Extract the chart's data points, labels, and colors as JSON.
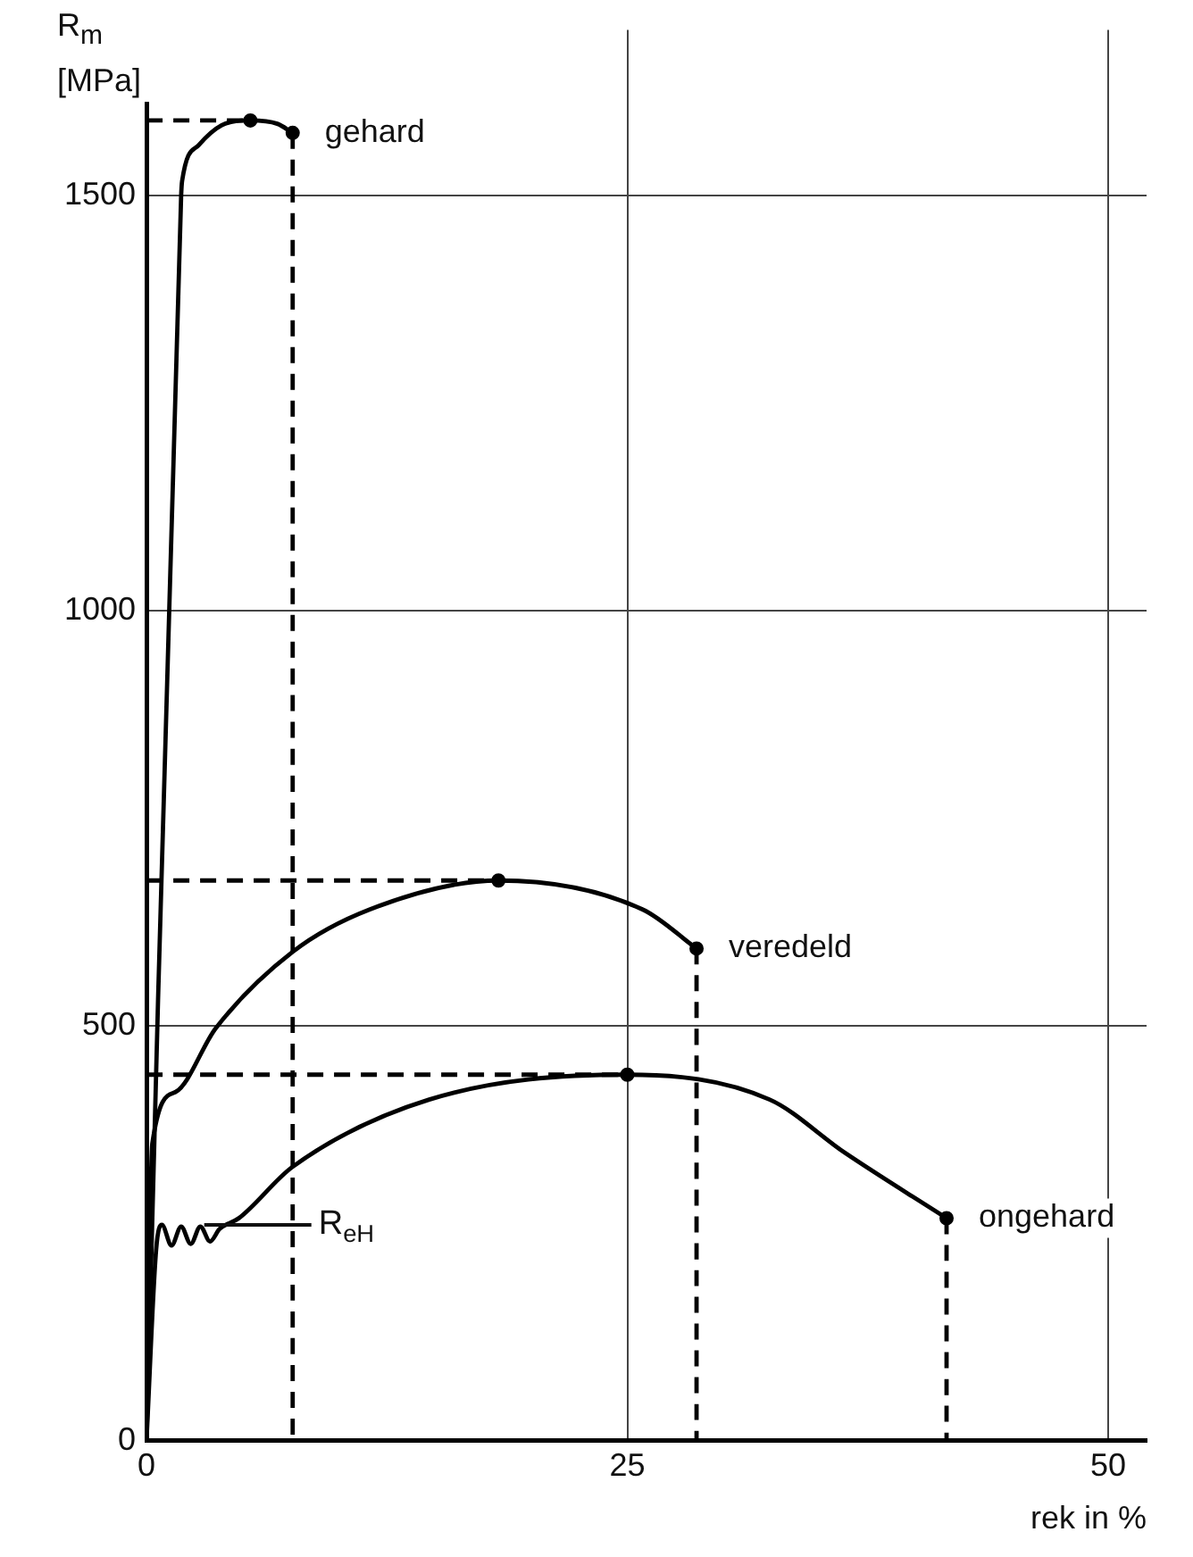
{
  "chart_data": {
    "type": "line",
    "ylabel": "R$_{m}$ [MPa]",
    "xlabel": "rek in %",
    "xlim": [
      0,
      52
    ],
    "ylim": [
      0,
      1700
    ],
    "xticks": [
      0,
      25,
      50
    ],
    "yticks": [
      0,
      500,
      1000,
      1500
    ],
    "grid": true,
    "legend": false,
    "series": [
      {
        "color": "#000000",
        "line_style": "solid",
        "marker": "none",
        "x": [
          0,
          1.8,
          1.85,
          2.7,
          3.9,
          5.4,
          6.8,
          7.6
        ],
        "values": [
          0,
          1500,
          1518,
          1561,
          1585,
          1591,
          1587,
          1576
        ]
      },
      {
        "color": "#000000",
        "line_style": "solid",
        "marker": "none",
        "x": [
          0,
          0.3,
          1.5,
          3.6,
          7.6,
          11.6,
          18.3,
          25.8,
          28.6
        ],
        "values": [
          0,
          358,
          420,
          497,
          589,
          640,
          675,
          640,
          593
        ]
      },
      {
        "color": "#000000",
        "line_style": "solid",
        "marker": "none",
        "x": [
          0,
          0.5,
          0.8,
          1.3,
          1.8,
          2.3,
          2.8,
          3.3,
          3.8,
          4.8,
          7.6,
          14.7,
          25,
          32.4,
          36.3,
          41.6
        ],
        "values": [
          0,
          230,
          260,
          235,
          258,
          237,
          258,
          240,
          255,
          268,
          330,
          411,
          441,
          411,
          347,
          268
        ]
      },
      {
        "color": "#000000",
        "line_style": "dashed",
        "marker": "none",
        "x": [
          0,
          5.4
        ],
        "values": [
          1591,
          1591
        ]
      },
      {
        "color": "#000000",
        "line_style": "dashed",
        "marker": "none",
        "x": [
          7.6,
          7.6
        ],
        "values": [
          1576,
          0
        ]
      },
      {
        "color": "#000000",
        "line_style": "dashed",
        "marker": "none",
        "x": [
          0,
          18.3
        ],
        "values": [
          675,
          675
        ]
      },
      {
        "color": "#000000",
        "line_style": "dashed",
        "marker": "none",
        "x": [
          28.6,
          28.6
        ],
        "values": [
          593,
          0
        ]
      },
      {
        "color": "#000000",
        "line_style": "dashed",
        "marker": "none",
        "x": [
          0,
          25
        ],
        "values": [
          441,
          441
        ]
      },
      {
        "color": "#000000",
        "line_style": "dashed",
        "marker": "none",
        "x": [
          41.6,
          41.6
        ],
        "values": [
          268,
          0
        ]
      },
      {
        "type": "scatter",
        "color": "#000000",
        "marker": "circle",
        "x": [
          5.4,
          7.6,
          18.3,
          28.6,
          25,
          41.6
        ],
        "values": [
          1591,
          1576,
          675,
          593,
          441,
          268
        ]
      }
    ],
    "annotations": [
      {
        "text": "gehard",
        "x": 7.6,
        "y": 1576
      },
      {
        "text": "veredeld",
        "x": 28.6,
        "y": 593
      },
      {
        "text": "ongehard",
        "x": 41.6,
        "y": 268
      },
      {
        "text": "R$_{eH}$",
        "x": 3,
        "y": 260
      }
    ]
  }
}
